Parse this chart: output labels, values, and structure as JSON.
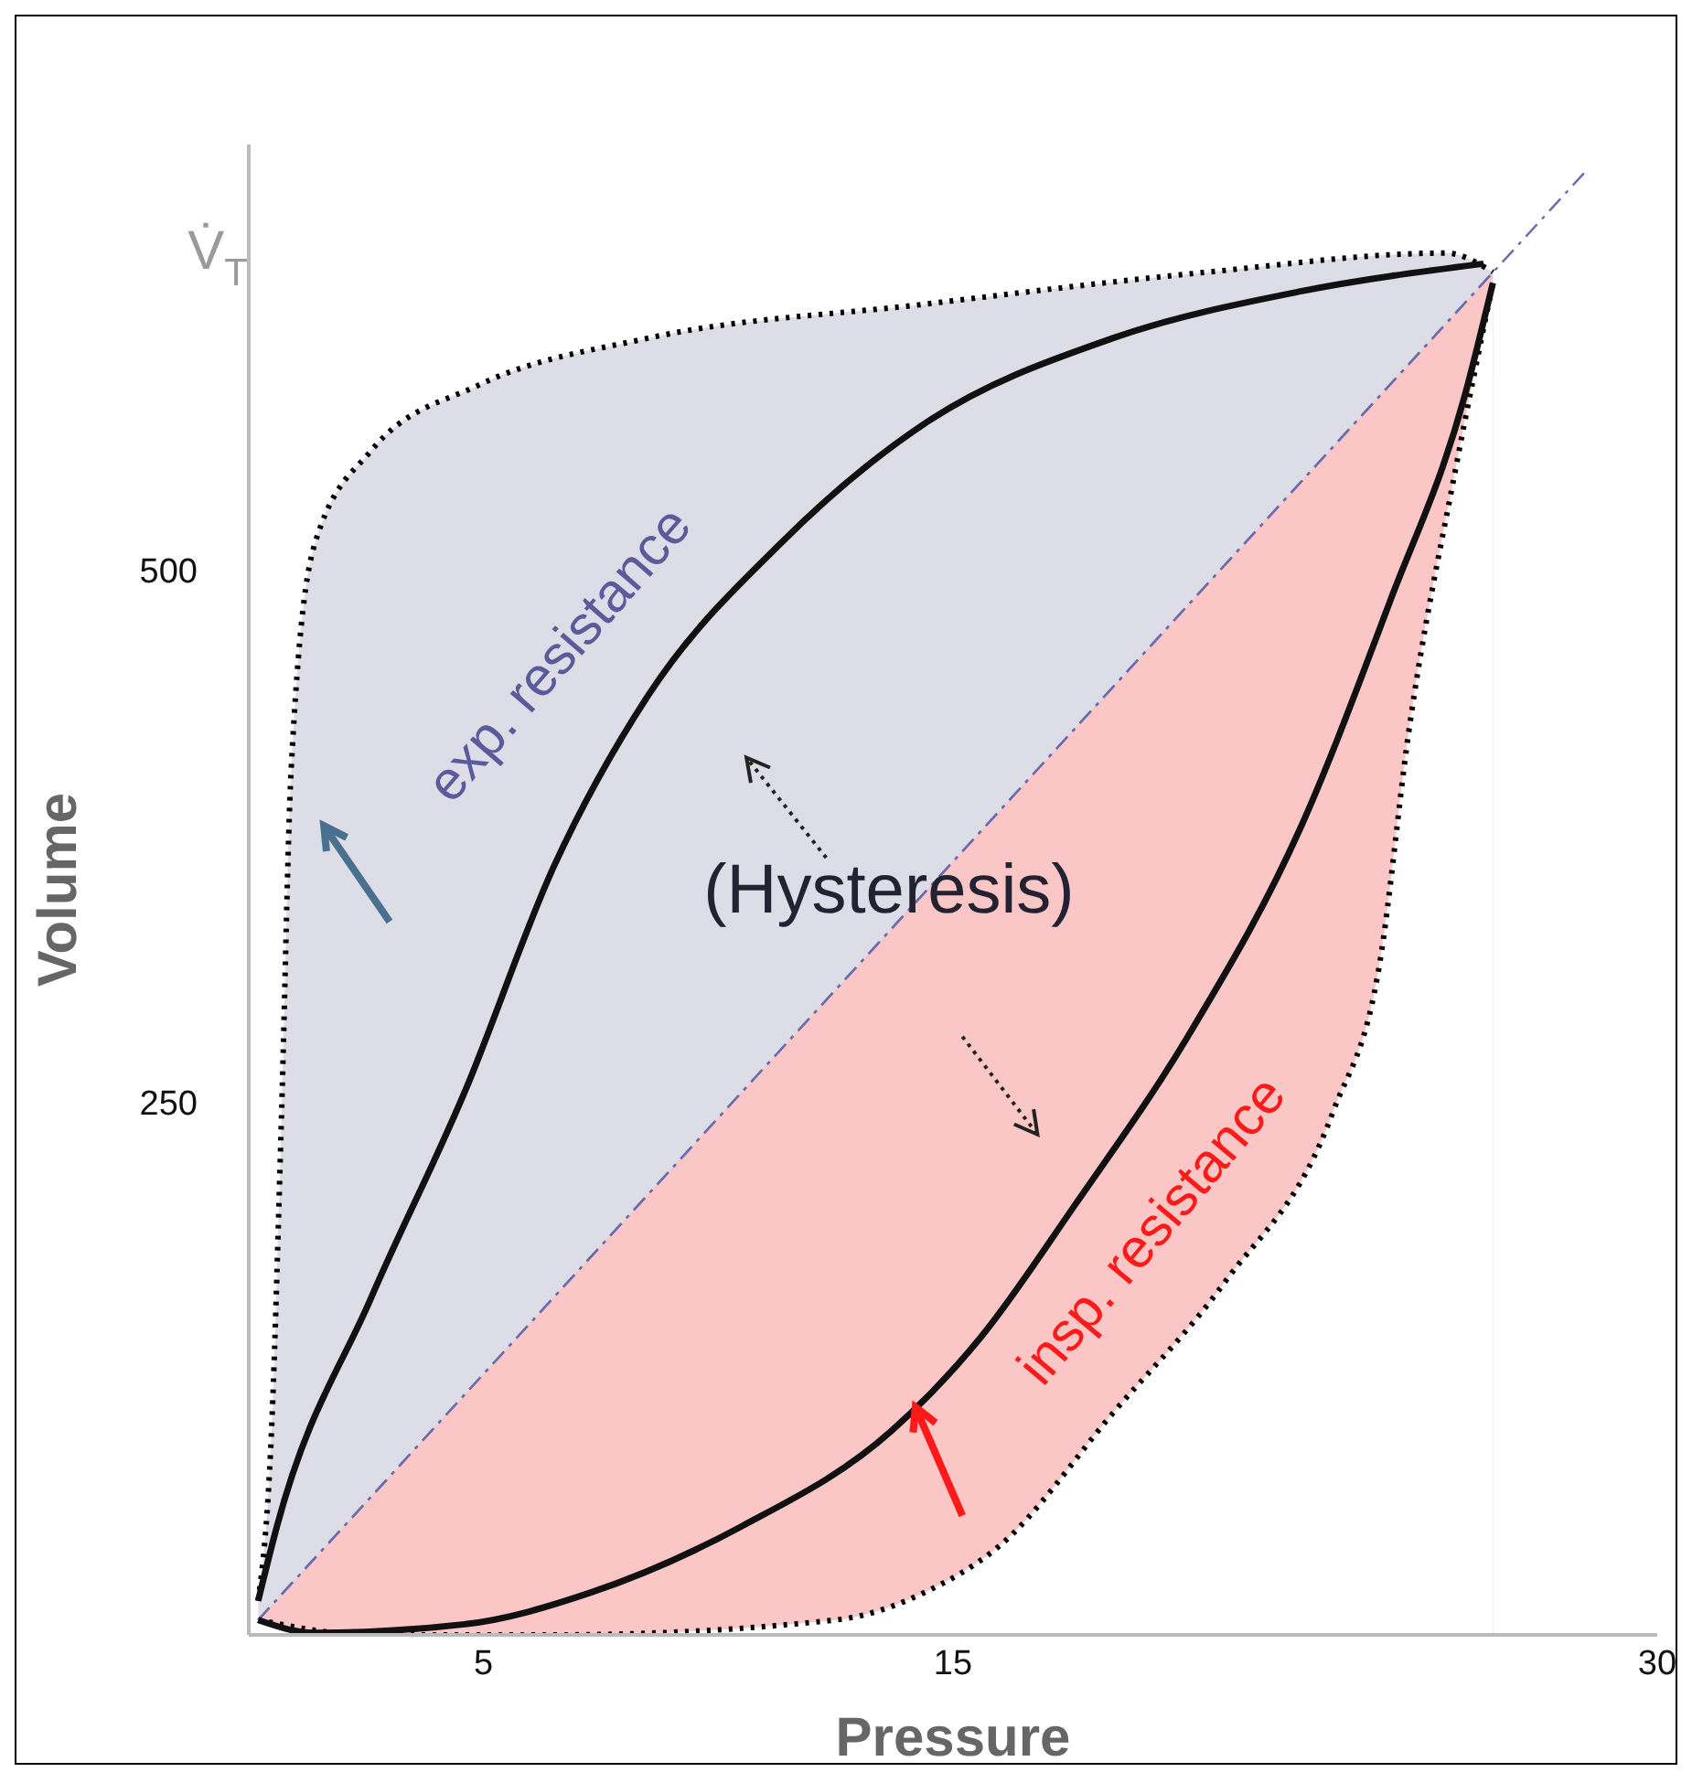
{
  "chart_data": {
    "type": "line",
    "xlabel": "Pressure",
    "ylabel": "Volume",
    "xlim": [
      0,
      30
    ],
    "ylim": [
      0,
      700
    ],
    "xticks": [
      5,
      15,
      30
    ],
    "yticks": [
      250,
      500
    ],
    "grid": false,
    "legend": false,
    "marker": "none",
    "annotations": [
      "V̇$_{T}$",
      "exp. resistance",
      "(Hysteresis)",
      "insp. resistance"
    ],
    "series": [
      {
        "type": "area",
        "color": "#dcdde6",
        "line_style": "dotted",
        "x": [
          0.2,
          0.5,
          0.7,
          0.9,
          1.4,
          2.6,
          4.9,
          8.5,
          14.4,
          20.4,
          25.5,
          26.5
        ],
        "values": [
          16,
          104,
          246,
          405,
          512,
          556,
          587,
          609,
          625,
          640,
          649,
          640
        ]
      },
      {
        "type": "area",
        "color": "#fac6c6",
        "line_style": "dashed",
        "x": [
          0.2,
          26.5
        ],
        "values": [
          7,
          640
        ]
      },
      {
        "type": "area",
        "color": "#ffffff",
        "line_style": "dotted",
        "x": [
          0.2,
          2.6,
          6.5,
          12.5,
          14.4,
          16.0,
          18.4,
          20.8,
          23.1,
          24.1,
          24.7,
          25.7,
          26.5
        ],
        "values": [
          7,
          0,
          0,
          7,
          20,
          42,
          104,
          166,
          246,
          317,
          423,
          547,
          635
        ]
      },
      {
        "color": "#6b6bb0",
        "line_style": "dashed",
        "x": [
          0.2,
          28.5
        ],
        "values": [
          7,
          688
        ]
      },
      {
        "color": "#111111",
        "line_style": "solid",
        "x": [
          0.2,
          0.6,
          2.6,
          4.6,
          6.5,
          8.5,
          11.3,
          14.4,
          18.4,
          22.4,
          26.3
        ],
        "values": [
          16,
          51,
          158,
          255,
          361,
          441,
          512,
          569,
          609,
          631,
          644
        ]
      },
      {
        "color": "#111111",
        "line_style": "solid",
        "x": [
          0.2,
          1.4,
          4.6,
          7.3,
          10.5,
          13.7,
          15.6,
          17.6,
          20.0,
          22.4,
          24.3,
          25.9,
          26.5
        ],
        "values": [
          7,
          1,
          5,
          20,
          51,
          96,
          140,
          202,
          281,
          379,
          485,
          582,
          635
        ]
      }
    ]
  }
}
